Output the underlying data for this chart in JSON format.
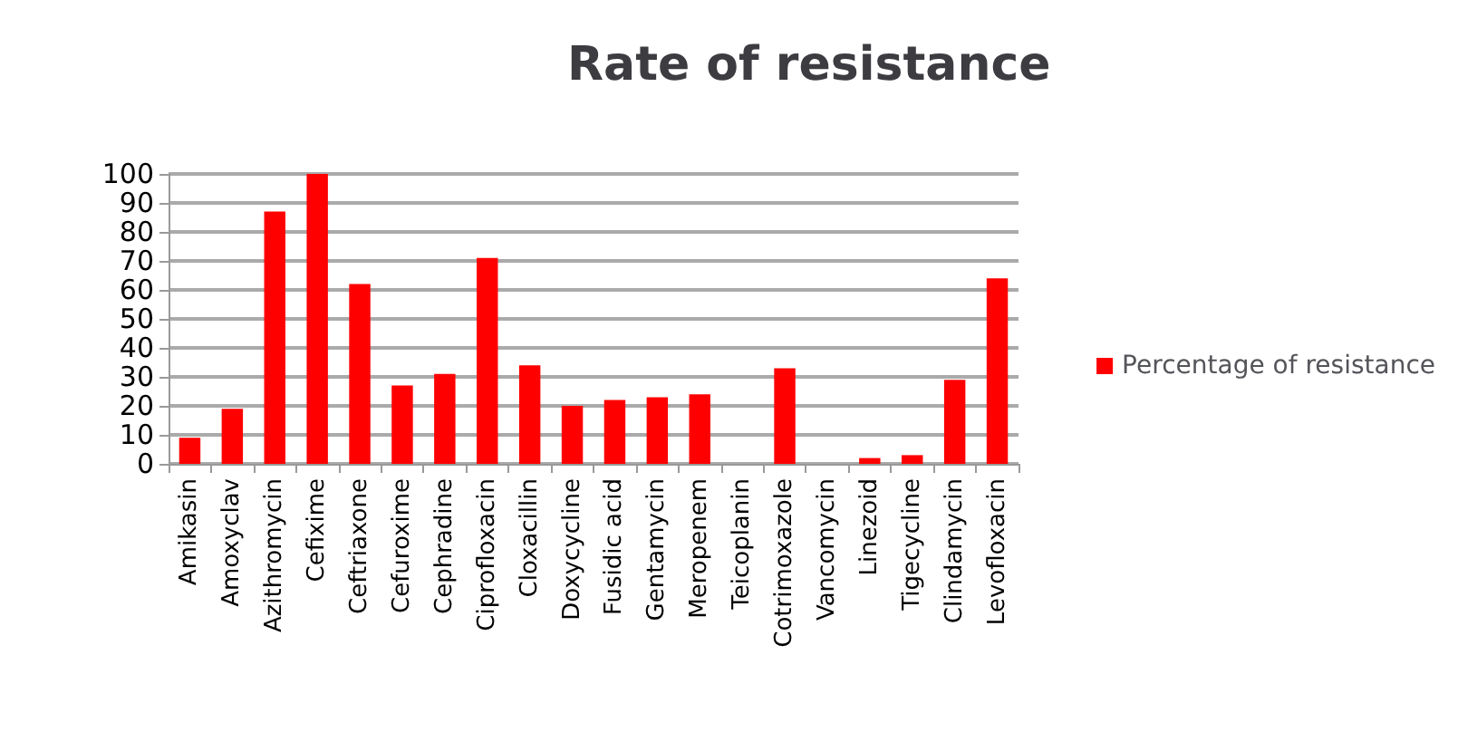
{
  "chart_data": {
    "type": "bar",
    "title": "Rate of resistance",
    "categories": [
      "Amikasin",
      "Amoxyclav",
      "Azithromycin",
      "Cefixime",
      "Ceftriaxone",
      "Cefuroxime",
      "Cephradine",
      "Ciprofloxacin",
      "Cloxacillin",
      "Doxycycline",
      "Fusidic acid",
      "Gentamycin",
      "Meropenem",
      "Teicoplanin",
      "Cotrimoxazole",
      "Vancomycin",
      "Linezoid",
      "Tigecycline",
      "Clindamycin",
      "Levofloxacin"
    ],
    "series": [
      {
        "name": "Percentage of resistance",
        "color": "#ff0000",
        "values": [
          9,
          19,
          87,
          100,
          62,
          27,
          31,
          71,
          34,
          20,
          22,
          23,
          24,
          0,
          33,
          0,
          2,
          3,
          29,
          64
        ]
      }
    ],
    "ylim": [
      0,
      100
    ],
    "yticks": [
      0,
      10,
      20,
      30,
      40,
      50,
      60,
      70,
      80,
      90,
      100
    ],
    "grid": "y",
    "legend": "right"
  }
}
